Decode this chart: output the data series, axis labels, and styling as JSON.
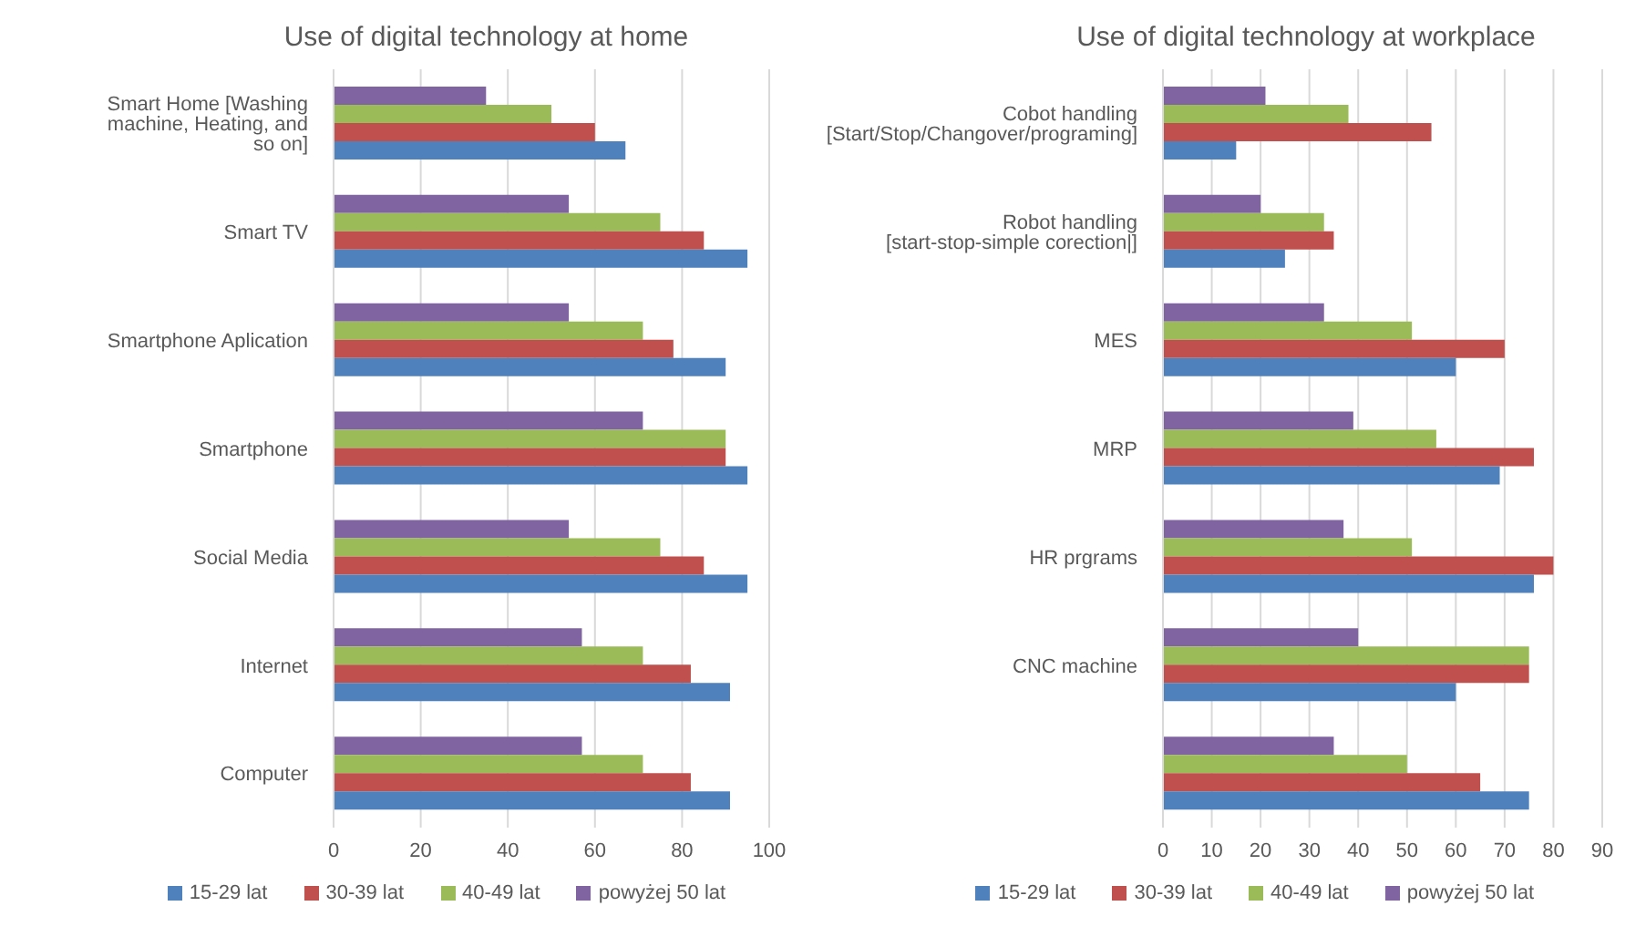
{
  "chart_data": [
    {
      "type": "bar",
      "orientation": "horizontal",
      "title": "Use of digital technology at home",
      "categories": [
        "Smart Home [Washing machine, Heating, and so on]",
        "Smart TV",
        "Smartphone Aplication",
        "Smartphone",
        "Social Media",
        "Internet",
        "Computer"
      ],
      "series": [
        {
          "name": "powyżej 50 lat",
          "color": "#8064a2",
          "values": [
            35,
            54,
            54,
            71,
            54,
            57,
            57
          ]
        },
        {
          "name": "40-49 lat",
          "color": "#9bbb59",
          "values": [
            50,
            75,
            71,
            90,
            75,
            71,
            71
          ]
        },
        {
          "name": "30-39 lat",
          "color": "#c0504d",
          "values": [
            60,
            85,
            78,
            90,
            85,
            82,
            82
          ]
        },
        {
          "name": "15-29 lat",
          "color": "#4f81bd",
          "values": [
            67,
            95,
            90,
            95,
            95,
            91,
            91
          ]
        }
      ],
      "xlim": [
        0,
        100
      ],
      "xticks": [
        0,
        20,
        40,
        60,
        80,
        100
      ],
      "grid": "x",
      "legend": "bottom"
    },
    {
      "type": "bar",
      "orientation": "horizontal",
      "title": "Use of digital technology at workplace",
      "categories": [
        "Cobot handling [Start/Stop/Changover/programing]",
        "Robot handling [start-stop-simple corection|]",
        "MES",
        "MRP",
        "HR prgrams",
        "CNC machine",
        null
      ],
      "series": [
        {
          "name": "powyżej 50 lat",
          "color": "#8064a2",
          "values": [
            21,
            20,
            33,
            39,
            37,
            40,
            35
          ]
        },
        {
          "name": "40-49 lat",
          "color": "#9bbb59",
          "values": [
            38,
            33,
            51,
            56,
            51,
            75,
            50
          ]
        },
        {
          "name": "30-39 lat",
          "color": "#c0504d",
          "values": [
            55,
            35,
            70,
            76,
            80,
            75,
            65
          ]
        },
        {
          "name": "15-29 lat",
          "color": "#4f81bd",
          "values": [
            15,
            25,
            60,
            69,
            76,
            60,
            75
          ]
        }
      ],
      "xlim": [
        0,
        90
      ],
      "xticks": [
        0,
        10,
        20,
        30,
        40,
        50,
        60,
        70,
        80,
        90
      ],
      "grid": "x",
      "legend": "bottom"
    }
  ]
}
